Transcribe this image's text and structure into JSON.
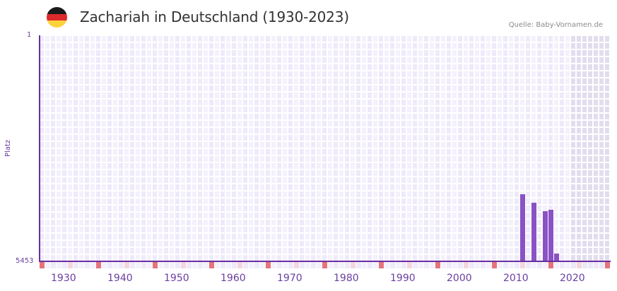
{
  "header": {
    "title": "Zachariah in Deutschland (1930-2023)",
    "source": "Quelle: Baby-Vornamen.de",
    "flag_icon": "germany-flag-icon",
    "flag_colors": [
      "#1a1a1a",
      "#dd2a2a",
      "#fdd23a"
    ]
  },
  "axis": {
    "y_top": "1",
    "y_bottom": "5453",
    "y_label": "Platz",
    "x_ticks": [
      "1930",
      "1940",
      "1950",
      "1960",
      "1970",
      "1980",
      "1990",
      "2000",
      "2010",
      "2020"
    ]
  },
  "colors": {
    "bar": "#8a52c4",
    "axis": "#6a2fa0",
    "grid_a": "#eeeafb",
    "grid_b": "#f4f1fc",
    "grid_gap": "#ffffff",
    "future_shade": "#e2ddee",
    "marker_major": "#e5737c",
    "marker_minor": "#f5d6de"
  },
  "chart_data": {
    "type": "bar",
    "title": "Zachariah in Deutschland (1930-2023)",
    "xlabel": "",
    "ylabel": "Platz",
    "y_inverted": true,
    "ylim": [
      5453,
      1
    ],
    "x_range": [
      1928,
      2028
    ],
    "grid": true,
    "legend": null,
    "annotation": "Quelle: Baby-Vornamen.de",
    "categories": [
      "2013",
      "2015",
      "2017",
      "2018",
      "2019"
    ],
    "values": [
      3834,
      4039,
      4243,
      4209,
      5266
    ],
    "series": [
      {
        "name": "Zachariah Rang",
        "x": [
          2013,
          2015,
          2017,
          2018,
          2019
        ],
        "values": [
          3834,
          4039,
          4243,
          4209,
          5266
        ]
      }
    ]
  }
}
